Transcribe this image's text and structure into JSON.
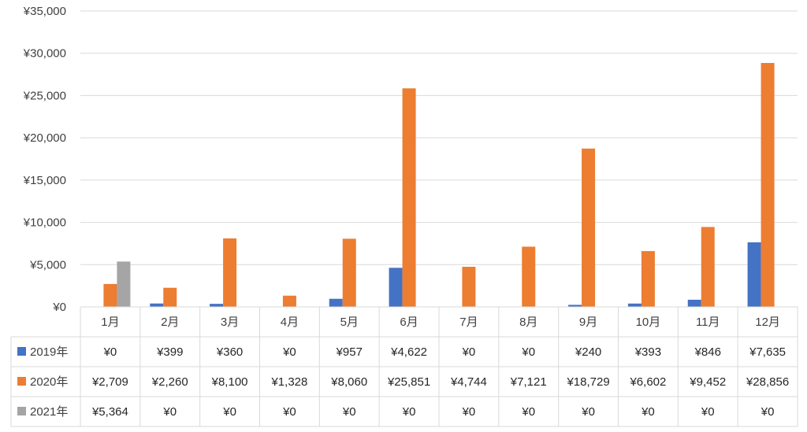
{
  "chart_data": {
    "type": "bar",
    "categories": [
      "1月",
      "2月",
      "3月",
      "4月",
      "5月",
      "6月",
      "7月",
      "8月",
      "9月",
      "10月",
      "11月",
      "12月"
    ],
    "series": [
      {
        "name": "2019年",
        "color": "#4472C4",
        "values": [
          0,
          399,
          360,
          0,
          957,
          4622,
          0,
          0,
          240,
          393,
          846,
          7635
        ],
        "labels": [
          "¥0",
          "¥399",
          "¥360",
          "¥0",
          "¥957",
          "¥4,622",
          "¥0",
          "¥0",
          "¥240",
          "¥393",
          "¥846",
          "¥7,635"
        ]
      },
      {
        "name": "2020年",
        "color": "#ED7D31",
        "values": [
          2709,
          2260,
          8100,
          1328,
          8060,
          25851,
          4744,
          7121,
          18729,
          6602,
          9452,
          28856
        ],
        "labels": [
          "¥2,709",
          "¥2,260",
          "¥8,100",
          "¥1,328",
          "¥8,060",
          "¥25,851",
          "¥4,744",
          "¥7,121",
          "¥18,729",
          "¥6,602",
          "¥9,452",
          "¥28,856"
        ]
      },
      {
        "name": "2021年",
        "color": "#A5A5A5",
        "values": [
          5364,
          0,
          0,
          0,
          0,
          0,
          0,
          0,
          0,
          0,
          0,
          0
        ],
        "labels": [
          "¥5,364",
          "¥0",
          "¥0",
          "¥0",
          "¥0",
          "¥0",
          "¥0",
          "¥0",
          "¥0",
          "¥0",
          "¥0",
          "¥0"
        ]
      }
    ],
    "ylim": [
      0,
      35000
    ],
    "yticks": [
      0,
      5000,
      10000,
      15000,
      20000,
      25000,
      30000,
      35000
    ],
    "ytick_labels": [
      "¥0",
      "¥5,000",
      "¥10,000",
      "¥15,000",
      "¥20,000",
      "¥25,000",
      "¥30,000",
      "¥35,000"
    ],
    "grid": true,
    "legend": "data-table",
    "title": "",
    "xlabel": "",
    "ylabel": ""
  }
}
